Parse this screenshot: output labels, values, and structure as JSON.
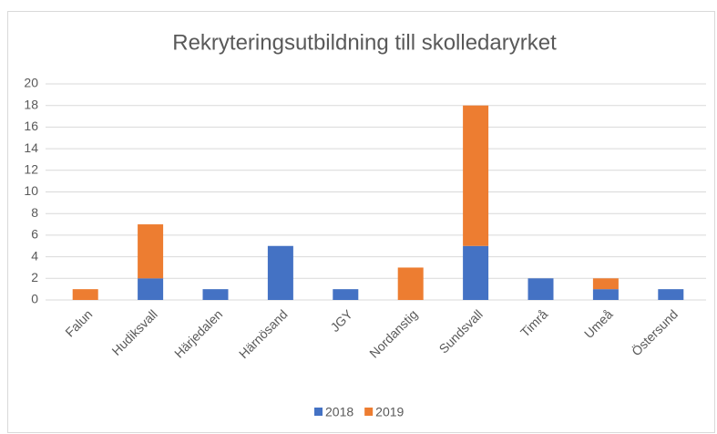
{
  "chart_data": {
    "type": "stacked_bar",
    "title": "Rekryteringsutbildning till skolledaryrket",
    "categories": [
      "Falun",
      "Hudiksvall",
      "Härjedalen",
      "Härnösand",
      "JGY",
      "Nordanstig",
      "Sundsvall",
      "Timrå",
      "Umeå",
      "Östersund"
    ],
    "series": [
      {
        "name": "2018",
        "color": "#4472c4",
        "values": [
          0,
          2,
          1,
          5,
          1,
          0,
          5,
          2,
          1,
          1
        ]
      },
      {
        "name": "2019",
        "color": "#ed7d31",
        "values": [
          1,
          5,
          0,
          0,
          0,
          3,
          13,
          0,
          1,
          0
        ]
      }
    ],
    "ylim": [
      0,
      20
    ],
    "yticks": [
      0,
      2,
      4,
      6,
      8,
      10,
      12,
      14,
      16,
      18,
      20
    ],
    "grid": true,
    "legend": "bottom"
  }
}
